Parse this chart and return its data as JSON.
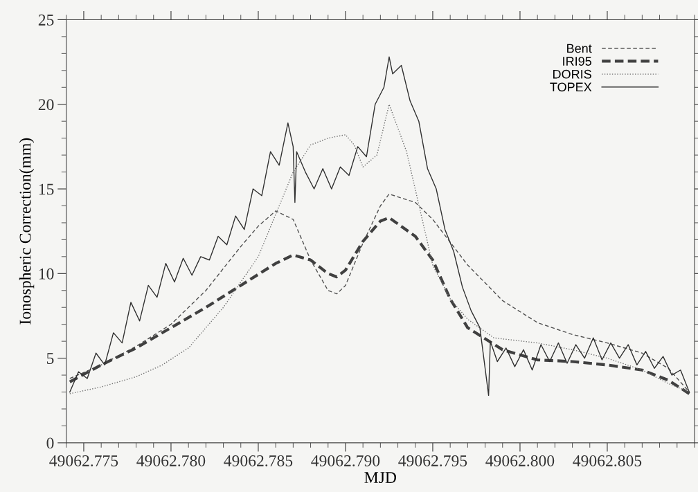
{
  "chart_data": {
    "type": "line",
    "xlabel": "MJD",
    "ylabel": "Ionospheric Correction(mm)",
    "xlim": [
      49062.774,
      49062.81
    ],
    "ylim": [
      0,
      25
    ],
    "xticks": [
      {
        "value": 49062.775,
        "label": "49062.775"
      },
      {
        "value": 49062.78,
        "label": "49062.780"
      },
      {
        "value": 49062.785,
        "label": "49062.785"
      },
      {
        "value": 49062.79,
        "label": "49062.790"
      },
      {
        "value": 49062.795,
        "label": "49062.795"
      },
      {
        "value": 49062.8,
        "label": "49062.800"
      },
      {
        "value": 49062.805,
        "label": "49062.805"
      }
    ],
    "yticks": [
      0,
      5,
      10,
      15,
      20,
      25
    ],
    "grid": false,
    "legend": "top right",
    "marker": "none",
    "series": [
      {
        "name": "Bent",
        "color": "#505050",
        "line_style": "dashed",
        "x": [
          49062.7742,
          49062.776,
          49062.778,
          49062.78,
          49062.782,
          49062.784,
          49062.785,
          49062.786,
          49062.787,
          49062.788,
          49062.789,
          49062.7895,
          49062.79,
          49062.791,
          49062.792,
          49062.7925,
          49062.794,
          49062.795,
          49062.797,
          49062.799,
          49062.801,
          49062.803,
          49062.805,
          49062.807,
          49062.8085,
          49062.8097
        ],
        "values": [
          3.8,
          4.6,
          5.7,
          7.0,
          9.0,
          11.6,
          12.8,
          13.7,
          13.2,
          10.8,
          9.0,
          8.8,
          9.3,
          11.8,
          14.0,
          14.7,
          14.2,
          13.2,
          10.5,
          8.4,
          7.1,
          6.4,
          5.9,
          5.3,
          4.4,
          3.0
        ]
      },
      {
        "name": "IRI95",
        "color": "#404040",
        "line_style": "dashed",
        "x": [
          49062.7742,
          49062.776,
          49062.778,
          49062.78,
          49062.782,
          49062.784,
          49062.786,
          49062.787,
          49062.788,
          49062.789,
          49062.7895,
          49062.79,
          49062.791,
          49062.792,
          49062.7925,
          49062.794,
          49062.795,
          49062.796,
          49062.797,
          49062.799,
          49062.801,
          49062.803,
          49062.805,
          49062.807,
          49062.8085,
          49062.8097
        ],
        "values": [
          3.6,
          4.6,
          5.6,
          6.8,
          8.0,
          9.3,
          10.6,
          11.1,
          10.8,
          10.0,
          9.8,
          10.2,
          11.9,
          13.1,
          13.3,
          12.2,
          10.8,
          8.5,
          6.8,
          5.5,
          4.9,
          4.8,
          4.6,
          4.3,
          3.7,
          2.9
        ]
      },
      {
        "name": "DORIS",
        "color": "#707070",
        "line_style": "dotted",
        "x": [
          49062.7742,
          49062.776,
          49062.778,
          49062.7795,
          49062.781,
          49062.783,
          49062.785,
          49062.787,
          49062.788,
          49062.789,
          49062.79,
          49062.7905,
          49062.791,
          49062.7918,
          49062.7925,
          49062.7935,
          49062.795,
          49062.796,
          49062.797,
          49062.7985,
          49062.801,
          49062.803,
          49062.805,
          49062.807,
          49062.8085,
          49062.8097
        ],
        "values": [
          2.9,
          3.3,
          3.9,
          4.6,
          5.6,
          8.0,
          11.0,
          16.0,
          17.6,
          18.0,
          18.2,
          17.6,
          16.3,
          17.0,
          20.0,
          17.2,
          10.5,
          8.5,
          7.3,
          6.2,
          5.9,
          5.5,
          5.0,
          4.3,
          3.5,
          3.0
        ]
      },
      {
        "name": "TOPEX",
        "color": "#303030",
        "line_style": "solid",
        "x": [
          49062.7742,
          49062.7747,
          49062.7752,
          49062.7757,
          49062.7762,
          49062.7767,
          49062.7772,
          49062.7777,
          49062.7782,
          49062.7787,
          49062.7792,
          49062.7797,
          49062.7802,
          49062.7807,
          49062.7812,
          49062.7817,
          49062.7822,
          49062.7827,
          49062.7832,
          49062.7837,
          49062.7842,
          49062.7847,
          49062.7852,
          49062.7857,
          49062.7862,
          49062.7867,
          49062.787,
          49062.7871,
          49062.7872,
          49062.7877,
          49062.7882,
          49062.7887,
          49062.7892,
          49062.7897,
          49062.7902,
          49062.7907,
          49062.7912,
          49062.7917,
          49062.7922,
          49062.7925,
          49062.7927,
          49062.7932,
          49062.7937,
          49062.7942,
          49062.7947,
          49062.7952,
          49062.7957,
          49062.7962,
          49062.7967,
          49062.7972,
          49062.7977,
          49062.7982,
          49062.7983,
          49062.7987,
          49062.7992,
          49062.7997,
          49062.8002,
          49062.8007,
          49062.8012,
          49062.8017,
          49062.8022,
          49062.8027,
          49062.8032,
          49062.8037,
          49062.8042,
          49062.8047,
          49062.8052,
          49062.8057,
          49062.8062,
          49062.8067,
          49062.8072,
          49062.8077,
          49062.8082,
          49062.8087,
          49062.8092,
          49062.8097
        ],
        "values": [
          3.0,
          4.2,
          3.8,
          5.3,
          4.6,
          6.5,
          5.9,
          8.3,
          7.2,
          9.3,
          8.6,
          10.6,
          9.5,
          10.9,
          9.9,
          11.0,
          10.8,
          12.2,
          11.7,
          13.4,
          12.6,
          15.0,
          14.6,
          17.2,
          16.4,
          18.9,
          17.5,
          14.2,
          17.2,
          16.0,
          15.0,
          16.2,
          15.0,
          16.3,
          15.8,
          17.5,
          16.9,
          20.0,
          21.0,
          22.8,
          21.8,
          22.3,
          20.2,
          19.0,
          16.2,
          15.0,
          12.6,
          11.3,
          9.2,
          7.8,
          6.8,
          2.8,
          6.0,
          4.8,
          5.6,
          4.5,
          5.5,
          4.3,
          5.8,
          4.8,
          5.9,
          4.7,
          5.8,
          5.0,
          6.2,
          4.9,
          5.9,
          5.0,
          5.8,
          4.6,
          5.4,
          4.4,
          5.1,
          4.0,
          4.3,
          3.0
        ]
      }
    ]
  }
}
